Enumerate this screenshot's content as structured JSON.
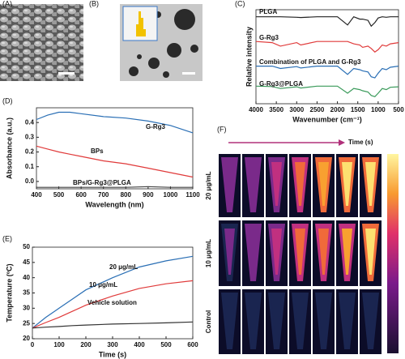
{
  "figure": {
    "panels": [
      "(A)",
      "(B)",
      "(C)",
      "(D)",
      "(E)",
      "(F)"
    ],
    "f_time": "Time (s)",
    "f_rows": [
      "20 μg/mL",
      "10 μg/mL",
      "Control"
    ]
  },
  "chart_data": [
    {
      "type": "line",
      "xlabel": "Wavenumber (cm⁻¹)",
      "ylabel": "Relative intensity",
      "x": [
        4000,
        3600,
        3400,
        3000,
        2900,
        2500,
        2000,
        1750,
        1600,
        1450,
        1380,
        1250,
        1170,
        1080,
        1000,
        900,
        800,
        700,
        500
      ],
      "xlim": [
        4000,
        500
      ],
      "xticks": [
        4000,
        3500,
        3000,
        2500,
        2000,
        1500,
        1000,
        500
      ],
      "ylim": [
        0,
        4
      ],
      "series": [
        {
          "name": "PLGA",
          "color": "#222222",
          "values": [
            3.7,
            3.7,
            3.7,
            3.68,
            3.67,
            3.7,
            3.7,
            3.35,
            3.7,
            3.6,
            3.6,
            3.55,
            3.3,
            3.45,
            3.65,
            3.7,
            3.68,
            3.7,
            3.7
          ]
        },
        {
          "name": "G-Rg3",
          "color": "#e03a3a",
          "values": [
            2.65,
            2.6,
            2.45,
            2.6,
            2.5,
            2.65,
            2.65,
            2.65,
            2.55,
            2.5,
            2.4,
            2.45,
            2.35,
            2.2,
            2.3,
            2.5,
            2.45,
            2.55,
            2.6
          ]
        },
        {
          "name": "Combination of PLGA and G-Rg3",
          "color": "#2a6fb5",
          "values": [
            1.6,
            1.6,
            1.5,
            1.58,
            1.52,
            1.6,
            1.6,
            1.25,
            1.5,
            1.45,
            1.4,
            1.35,
            1.15,
            1.1,
            1.3,
            1.5,
            1.45,
            1.55,
            1.6
          ]
        },
        {
          "name": "G-Rg3@PLGA",
          "color": "#3a9a5a",
          "values": [
            0.75,
            0.73,
            0.65,
            0.72,
            0.67,
            0.75,
            0.75,
            0.45,
            0.65,
            0.6,
            0.55,
            0.5,
            0.35,
            0.3,
            0.45,
            0.65,
            0.6,
            0.7,
            0.72
          ]
        }
      ]
    },
    {
      "type": "line",
      "xlabel": "Wavelength (nm)",
      "ylabel": "Absorbance (a.u.)",
      "x": [
        400,
        450,
        500,
        550,
        600,
        700,
        800,
        900,
        1000,
        1100
      ],
      "xlim": [
        400,
        1100
      ],
      "xticks": [
        400,
        500,
        600,
        700,
        800,
        900,
        1000,
        1100
      ],
      "ylim": [
        -0.05,
        0.5
      ],
      "yticks": [
        {
          "value": 0,
          "label": "0.0"
        },
        0.1,
        0.2,
        0.3,
        0.4
      ],
      "series": [
        {
          "name": "G-Rg3",
          "color": "#2a6fb5",
          "values": [
            0.42,
            0.45,
            0.47,
            0.47,
            0.46,
            0.44,
            0.43,
            0.41,
            0.38,
            0.33
          ]
        },
        {
          "name": "BPs",
          "color": "#e03a3a",
          "values": [
            0.24,
            0.22,
            0.2,
            0.185,
            0.17,
            0.14,
            0.12,
            0.09,
            0.06,
            0.03
          ]
        },
        {
          "name": "BPs/G-Rg3@PLGA",
          "color": "#444444",
          "values": [
            -0.04,
            -0.04,
            -0.04,
            -0.04,
            -0.04,
            -0.04,
            -0.04,
            -0.035,
            -0.04,
            -0.04
          ]
        }
      ]
    },
    {
      "type": "line",
      "xlabel": "Time (s)",
      "ylabel": "Temperature (ºC)",
      "x": [
        0,
        50,
        100,
        150,
        200,
        300,
        400,
        500,
        600
      ],
      "xlim": [
        0,
        600
      ],
      "xticks": [
        0,
        100,
        200,
        300,
        400,
        500,
        600
      ],
      "ylim": [
        20,
        50
      ],
      "yticks": [
        20,
        25,
        30,
        35,
        40,
        45,
        50
      ],
      "series": [
        {
          "name": "20 μg/mL",
          "color": "#2a6fb5",
          "values": [
            23.5,
            27,
            30,
            33,
            36,
            40,
            43.5,
            45.5,
            47
          ]
        },
        {
          "name": "10 μg/mL",
          "color": "#e03a3a",
          "values": [
            23.5,
            25.3,
            27,
            29,
            31,
            34,
            36.5,
            38,
            39
          ]
        },
        {
          "name": "Vehicle solution",
          "color": "#333333",
          "values": [
            23.5,
            23.8,
            24,
            24.3,
            24.5,
            24.8,
            25,
            25.2,
            25.5
          ]
        }
      ]
    }
  ]
}
